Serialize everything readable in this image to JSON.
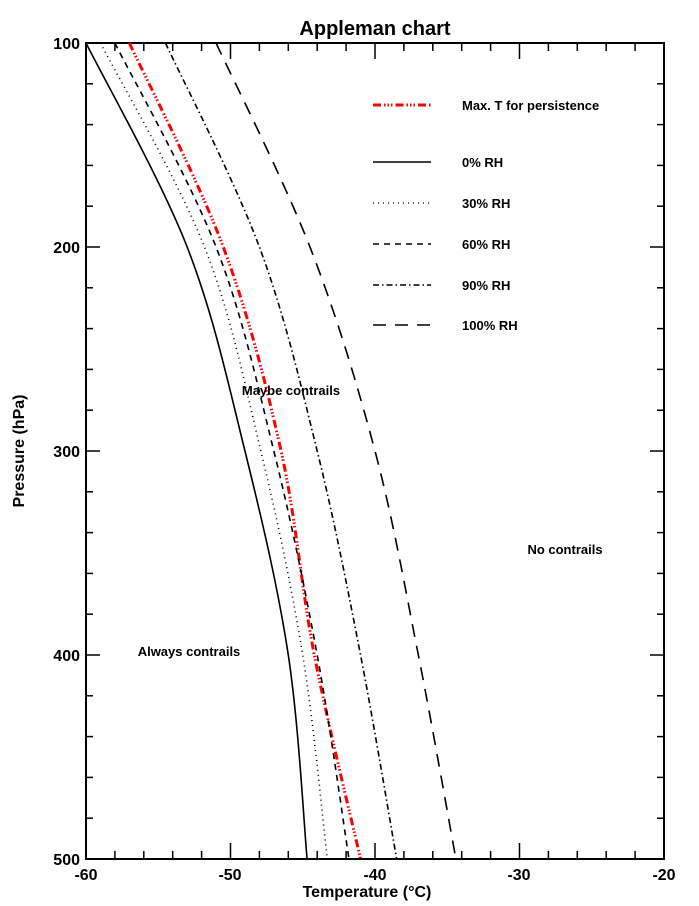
{
  "chart_data": {
    "type": "line",
    "title": "Appleman chart",
    "xlabel": "Temperature (°C)",
    "ylabel": "Pressure (hPa)",
    "xlim": [
      -60,
      -20
    ],
    "ylim": [
      500,
      100
    ],
    "y_inverted": true,
    "grid": false,
    "legend_position": "upper right (inside)",
    "x_ticks": [
      "-60",
      "-50",
      "-40",
      "-30",
      "-20"
    ],
    "y_ticks": [
      "100",
      "200",
      "300",
      "400",
      "500"
    ],
    "pressure": [
      100,
      200,
      300,
      400,
      500
    ],
    "series": [
      {
        "name": "Max. T for persistence",
        "style": "dash-dot-dot",
        "color": "#ff0000",
        "temperature": [
          -57.0,
          -50.5,
          -46.5,
          -44.2,
          -41.0
        ]
      },
      {
        "name": "0% RH",
        "style": "solid",
        "color": "#000000",
        "temperature": [
          -60.0,
          -53.0,
          -49.0,
          -46.0,
          -44.7
        ]
      },
      {
        "name": "30% RH",
        "style": "dotted",
        "color": "#000000",
        "temperature": [
          -59.0,
          -51.8,
          -47.9,
          -45.0,
          -43.3
        ]
      },
      {
        "name": "60% RH",
        "style": "dashed",
        "color": "#000000",
        "temperature": [
          -58.0,
          -51.0,
          -47.0,
          -44.0,
          -41.8
        ]
      },
      {
        "name": "90% RH",
        "style": "dash-dot",
        "color": "#000000",
        "temperature": [
          -54.5,
          -48.0,
          -44.0,
          -41.0,
          -38.5
        ]
      },
      {
        "name": "100% RH",
        "style": "long-dash",
        "color": "#000000",
        "temperature": [
          -51.0,
          -44.5,
          -40.0,
          -37.0,
          -34.4
        ]
      }
    ],
    "annotations": [
      {
        "text": "Maybe contrails",
        "x": -48.5,
        "y": 270
      },
      {
        "text": "Always contrails",
        "x": -56.0,
        "y": 398
      },
      {
        "text": "No contrails",
        "x": -27.5,
        "y": 348
      }
    ]
  },
  "labels": {
    "title": "Appleman chart",
    "xlabel": "Temperature (°C)",
    "ylabel": "Pressure (hPa)",
    "x_ticks": [
      "-60",
      "-50",
      "-40",
      "-30",
      "-20"
    ],
    "y_ticks": [
      "100",
      "200",
      "300",
      "400",
      "500"
    ],
    "legend": [
      "Max. T for persistence",
      "0% RH",
      "30% RH",
      "60% RH",
      "90% RH",
      "100% RH"
    ],
    "regions": [
      "Maybe contrails",
      "Always contrails",
      "No contrails"
    ]
  }
}
